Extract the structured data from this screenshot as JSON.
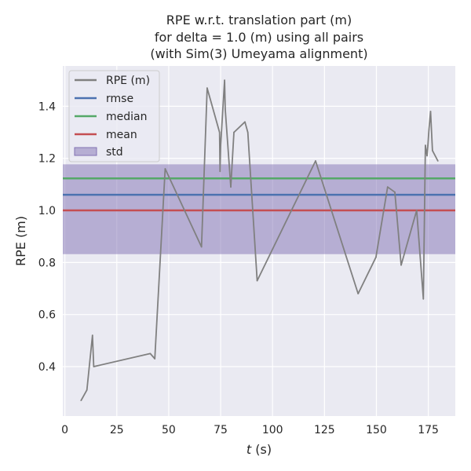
{
  "chart_data": {
    "type": "line",
    "title_lines": [
      "RPE w.r.t. translation part (m)",
      "for delta = 1.0 (m) using all pairs",
      "(with Sim(3) Umeyama alignment)"
    ],
    "xlabel_italic": "t",
    "xlabel_rest": " (s)",
    "ylabel": "RPE (m)",
    "xlim": [
      -1,
      188
    ],
    "ylim": [
      0.21,
      1.555
    ],
    "xticks": [
      0,
      25,
      50,
      75,
      100,
      125,
      150,
      175
    ],
    "yticks": [
      0.4,
      0.6,
      0.8,
      1.0,
      1.2,
      1.4
    ],
    "ytick_labels": [
      "0.4",
      "0.6",
      "0.8",
      "1.0",
      "1.2",
      "1.4"
    ],
    "grid": true,
    "background": "#eaeaf2",
    "legend_position": "top-left",
    "legend": [
      {
        "label": "RPE (m)",
        "kind": "line",
        "color": "#808080"
      },
      {
        "label": "rmse",
        "kind": "line",
        "color": "#4c72b0"
      },
      {
        "label": "median",
        "kind": "line",
        "color": "#55a868"
      },
      {
        "label": "mean",
        "kind": "line",
        "color": "#c44e52"
      },
      {
        "label": "std",
        "kind": "patch",
        "color": "#8172b3"
      }
    ],
    "series": [
      {
        "name": "RPE (m)",
        "color": "#808080",
        "x": [
          7.8,
          10.6,
          13.3,
          13.9,
          41.1,
          43.3,
          48.3,
          65.8,
          68.5,
          74.5,
          74.7,
          75.0,
          76.9,
          77.2,
          79.9,
          81.4,
          86.7,
          88.1,
          92.6,
          120.7,
          141.2,
          149.8,
          155.4,
          158.9,
          161.9,
          169.4,
          172.6,
          173.6,
          174.4,
          174.8,
          175.3,
          176.1,
          177.0,
          179.6
        ],
        "y": [
          0.27,
          0.31,
          0.52,
          0.4,
          0.45,
          0.43,
          1.16,
          0.86,
          1.47,
          1.3,
          1.15,
          1.25,
          1.5,
          1.39,
          1.09,
          1.3,
          1.34,
          1.3,
          0.73,
          1.19,
          0.68,
          0.82,
          1.09,
          1.07,
          0.79,
          1.0,
          0.66,
          1.25,
          1.21,
          1.25,
          1.31,
          1.38,
          1.23,
          1.19
        ]
      }
    ],
    "stats": {
      "rmse": 1.06,
      "median": 1.123,
      "mean": 1.0,
      "std_band": [
        0.832,
        1.177
      ]
    }
  }
}
